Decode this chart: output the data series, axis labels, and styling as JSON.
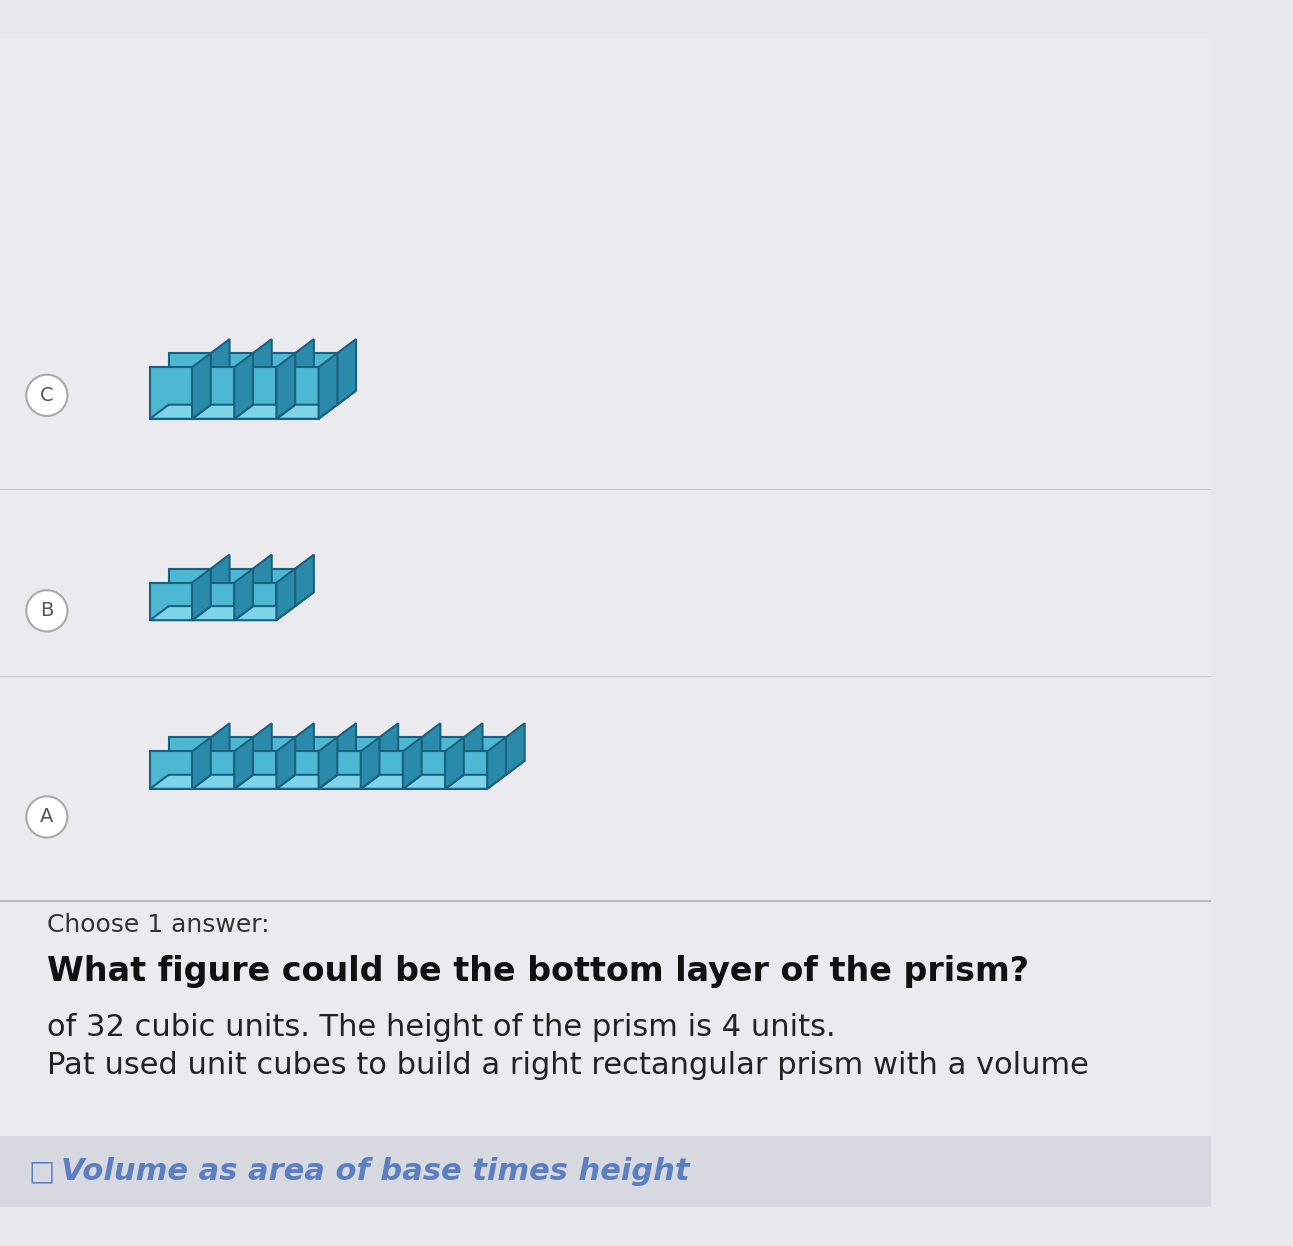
{
  "title": "Volume as area of base times height",
  "title_icon": "⧈",
  "title_color": "#5b7fc1",
  "bg_color": "#e8e8ec",
  "problem_text_line1": "Pat used unit cubes to build a right rectangular prism with a volume",
  "problem_text_line2": "of 32 cubic units. The height of the prism is 4 units.",
  "question_text": "What figure could be the bottom layer of the prism?",
  "choose_text": "Choose 1 answer:",
  "cube_face_color": "#4db8d4",
  "cube_top_color": "#7dd4e8",
  "cube_side_color": "#2a8aaa",
  "cube_edge_color": "#1a6080",
  "option_circle_color": "#aaaaaa",
  "prism_A": {
    "cols": 8,
    "rows": 2,
    "label": "A"
  },
  "prism_B": {
    "cols": 3,
    "rows": 2,
    "label": "B"
  },
  "prism_C": {
    "cols": 4,
    "rows": 2,
    "label": "C"
  }
}
